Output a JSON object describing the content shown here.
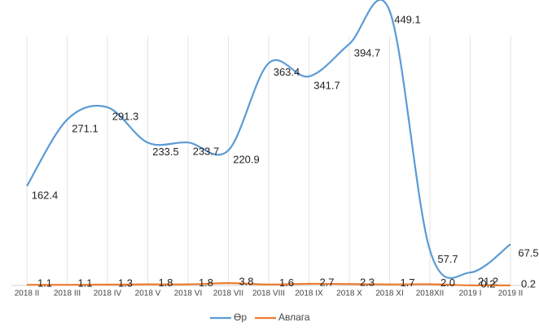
{
  "chart_data": {
    "type": "line",
    "categories": [
      "2018 II",
      "2018 III",
      "2018 IV",
      "2018 V",
      "2018 VI",
      "2018 VII",
      "2018 VIII",
      "2018 IX",
      "2018 X",
      "2018 XI",
      "2018XII",
      "2019 I",
      "2019 II"
    ],
    "series": [
      {
        "name": "Өр",
        "color": "#5b9bd5",
        "values": [
          162.4,
          271.1,
          291.3,
          233.5,
          233.7,
          220.9,
          363.4,
          341.7,
          394.7,
          449.1,
          57.7,
          21.2,
          67.5
        ]
      },
      {
        "name": "Авлага",
        "color": "#ed7d31",
        "values": [
          1.1,
          1.1,
          1.3,
          1.8,
          1.8,
          3.8,
          1.6,
          2.7,
          2.3,
          1.7,
          2.0,
          0.2,
          0.2
        ],
        "value_labels": [
          "1.1",
          "1.1",
          "1.3",
          "1.8",
          "1.8",
          "3.8",
          "1.6",
          "2.7",
          "2.3",
          "1.7",
          "2.0",
          "0.2",
          "0.2"
        ]
      }
    ],
    "ylim": [
      0,
      460
    ],
    "smooth": true,
    "legend": "bottom"
  }
}
